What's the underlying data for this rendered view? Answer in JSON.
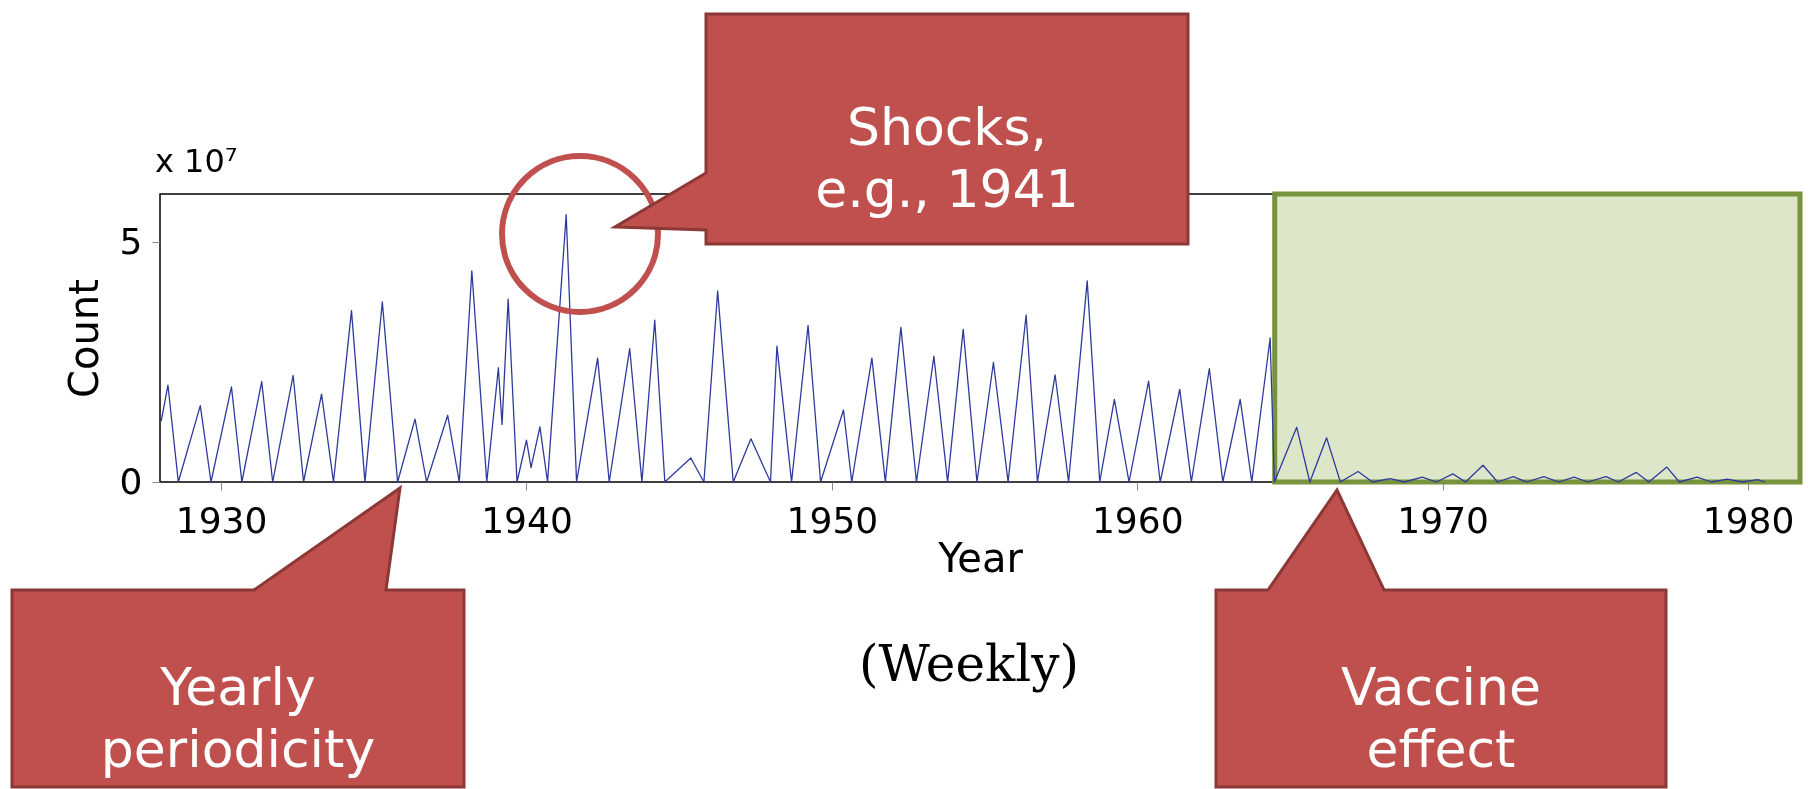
{
  "chart_data": {
    "type": "line",
    "xlabel": "Year",
    "ylabel": "Count",
    "xlim": [
      1928,
      1981.7
    ],
    "ylim": [
      0,
      6
    ],
    "xticks": [
      1930,
      1940,
      1950,
      1960,
      1970,
      1980
    ],
    "yticks": [
      0,
      5
    ],
    "grid": false,
    "marker": "none",
    "line_style": "solid",
    "x": [
      1928.04,
      1928.26,
      1928.6,
      1929.32,
      1929.67,
      1930.34,
      1930.68,
      1931.33,
      1931.69,
      1932.36,
      1932.7,
      1933.29,
      1933.68,
      1934.27,
      1934.71,
      1935.28,
      1935.78,
      1936.35,
      1936.73,
      1937.42,
      1937.8,
      1938.21,
      1938.7,
      1939.08,
      1939.2,
      1939.4,
      1939.69,
      1940.0,
      1940.15,
      1940.44,
      1940.69,
      1941.3,
      1941.64,
      1942.33,
      1942.71,
      1943.38,
      1943.78,
      1944.2,
      1944.53,
      1945.38,
      1945.81,
      1946.26,
      1946.77,
      1947.35,
      1947.99,
      1948.2,
      1948.68,
      1949.22,
      1949.63,
      1950.38,
      1950.65,
      1951.31,
      1951.75,
      1952.26,
      1952.77,
      1953.34,
      1953.79,
      1954.3,
      1954.75,
      1955.29,
      1955.77,
      1956.36,
      1956.73,
      1957.31,
      1957.75,
      1958.36,
      1958.77,
      1959.25,
      1959.73,
      1960.37,
      1960.75,
      1961.39,
      1961.77,
      1962.36,
      1962.8,
      1963.37,
      1963.75,
      1964.35,
      1964.49,
      1965.22,
      1965.65,
      1966.2,
      1966.65,
      1967.23,
      1967.7,
      1968.28,
      1968.75,
      1969.33,
      1969.8,
      1970.33,
      1970.75,
      1971.32,
      1971.8,
      1972.31,
      1972.75,
      1973.31,
      1973.8,
      1974.3,
      1974.75,
      1975.35,
      1975.75,
      1976.34,
      1976.75,
      1977.34,
      1977.75,
      1978.33,
      1978.8,
      1979.32,
      1979.8,
      1980.32,
      1980.55
    ],
    "series": [
      {
        "color": "#2e3b9c",
        "values": [
          1.27,
          2.02,
          0,
          1.59,
          0,
          1.98,
          0,
          2.09,
          0,
          2.22,
          0,
          1.83,
          0,
          3.57,
          0,
          3.75,
          0,
          1.31,
          0,
          1.39,
          0,
          4.4,
          0,
          2.38,
          1.2,
          3.81,
          0,
          0.87,
          0.3,
          1.15,
          0,
          5.57,
          0,
          2.58,
          0,
          2.78,
          0,
          3.37,
          0,
          0.5,
          0,
          3.98,
          0,
          0.9,
          0,
          2.83,
          0,
          3.26,
          0,
          1.5,
          0,
          2.58,
          0,
          3.22,
          0,
          2.62,
          0,
          3.18,
          0,
          2.49,
          0,
          3.48,
          0,
          2.23,
          0,
          4.19,
          0,
          1.72,
          0,
          2.1,
          0,
          1.93,
          0,
          2.36,
          0,
          1.72,
          0,
          3.0,
          0,
          1.14,
          0,
          0.92,
          0,
          0.22,
          0,
          0.07,
          0,
          0.1,
          0,
          0.17,
          0,
          0.35,
          0,
          0.11,
          0,
          0.11,
          0,
          0.1,
          0,
          0.11,
          0,
          0.2,
          0,
          0.31,
          0,
          0.1,
          0,
          0.06,
          0,
          0.05,
          0
        ]
      }
    ],
    "bands": [
      {
        "axis": "x",
        "from": 1964.5,
        "to": 1981.7,
        "color": "#dde6c8"
      }
    ],
    "annotations": [
      "Shocks,\ne.g., 1941",
      "Yearly\nperiodicity",
      "Vaccine\neffect",
      "x 10⁷",
      "(Weekly)"
    ]
  }
}
